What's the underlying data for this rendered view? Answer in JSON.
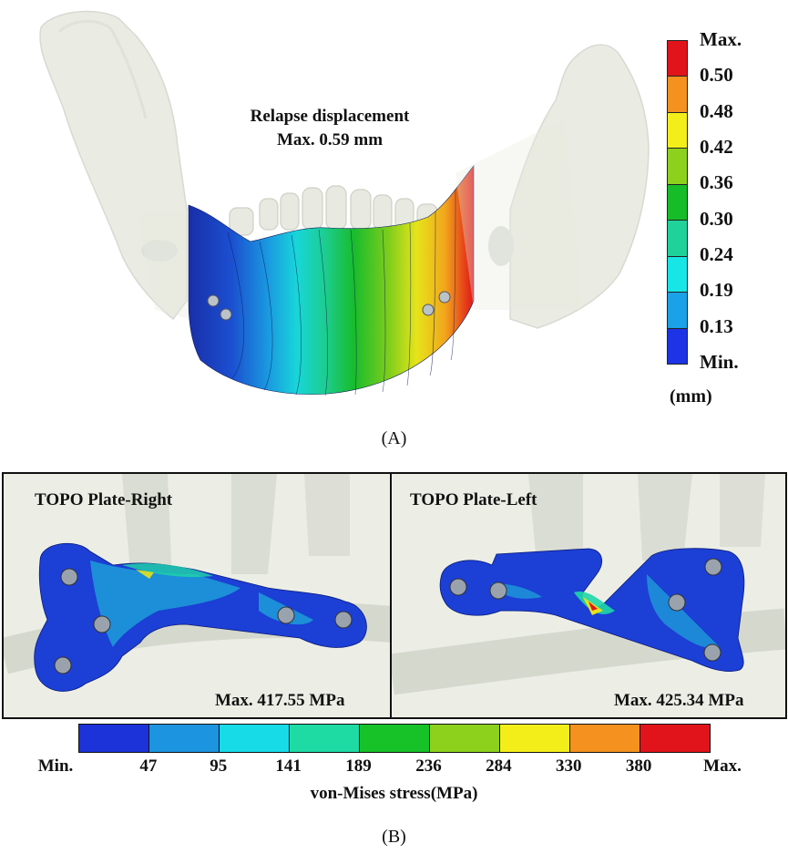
{
  "panel_a": {
    "title_line1": "Relapse displacement",
    "title_line2": "Max. 0.59 mm",
    "caption": "(A)",
    "legend": {
      "labels": [
        "Max.",
        "0.50",
        "0.48",
        "0.42",
        "0.36",
        "0.30",
        "0.24",
        "0.19",
        "0.13",
        "Min."
      ],
      "colors": [
        "#e1141c",
        "#f5911e",
        "#f3ee1a",
        "#8ed11c",
        "#16bd28",
        "#1ed29a",
        "#18e5e6",
        "#1aa1e8",
        "#1c33e6"
      ],
      "unit": "(mm)"
    }
  },
  "panel_b": {
    "left_title": "TOPO Plate-Right",
    "left_max": "Max. 417.55 MPa",
    "right_title": "TOPO Plate-Left",
    "right_max": "Max. 425.34 MPa",
    "caption": "(B)",
    "legend": {
      "labels": [
        "Min.",
        "47",
        "95",
        "141",
        "189",
        "236",
        "284",
        "330",
        "380",
        "Max."
      ],
      "colors": [
        "#1c33d9",
        "#1c94e0",
        "#18dbe8",
        "#1edba4",
        "#16c228",
        "#8ed11c",
        "#f3ee1a",
        "#f5911e",
        "#e1141c"
      ],
      "title": "von-Mises stress(MPa)"
    }
  }
}
